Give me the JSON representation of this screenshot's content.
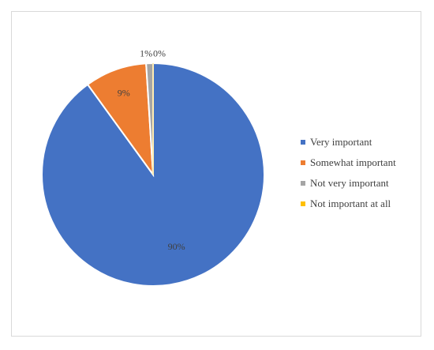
{
  "chart_data": {
    "type": "pie",
    "title": "",
    "categories": [
      "Very important",
      "Somewhat important",
      "Not very important",
      "Not important at all"
    ],
    "values": [
      90,
      9,
      1,
      0
    ],
    "data_labels": [
      "90%",
      "9%",
      "1%",
      "0%"
    ],
    "colors": [
      "#4472c4",
      "#ed7d31",
      "#a5a5a5",
      "#ffc000"
    ],
    "legend_position": "right",
    "start_angle": "12 o'clock, clockwise"
  }
}
